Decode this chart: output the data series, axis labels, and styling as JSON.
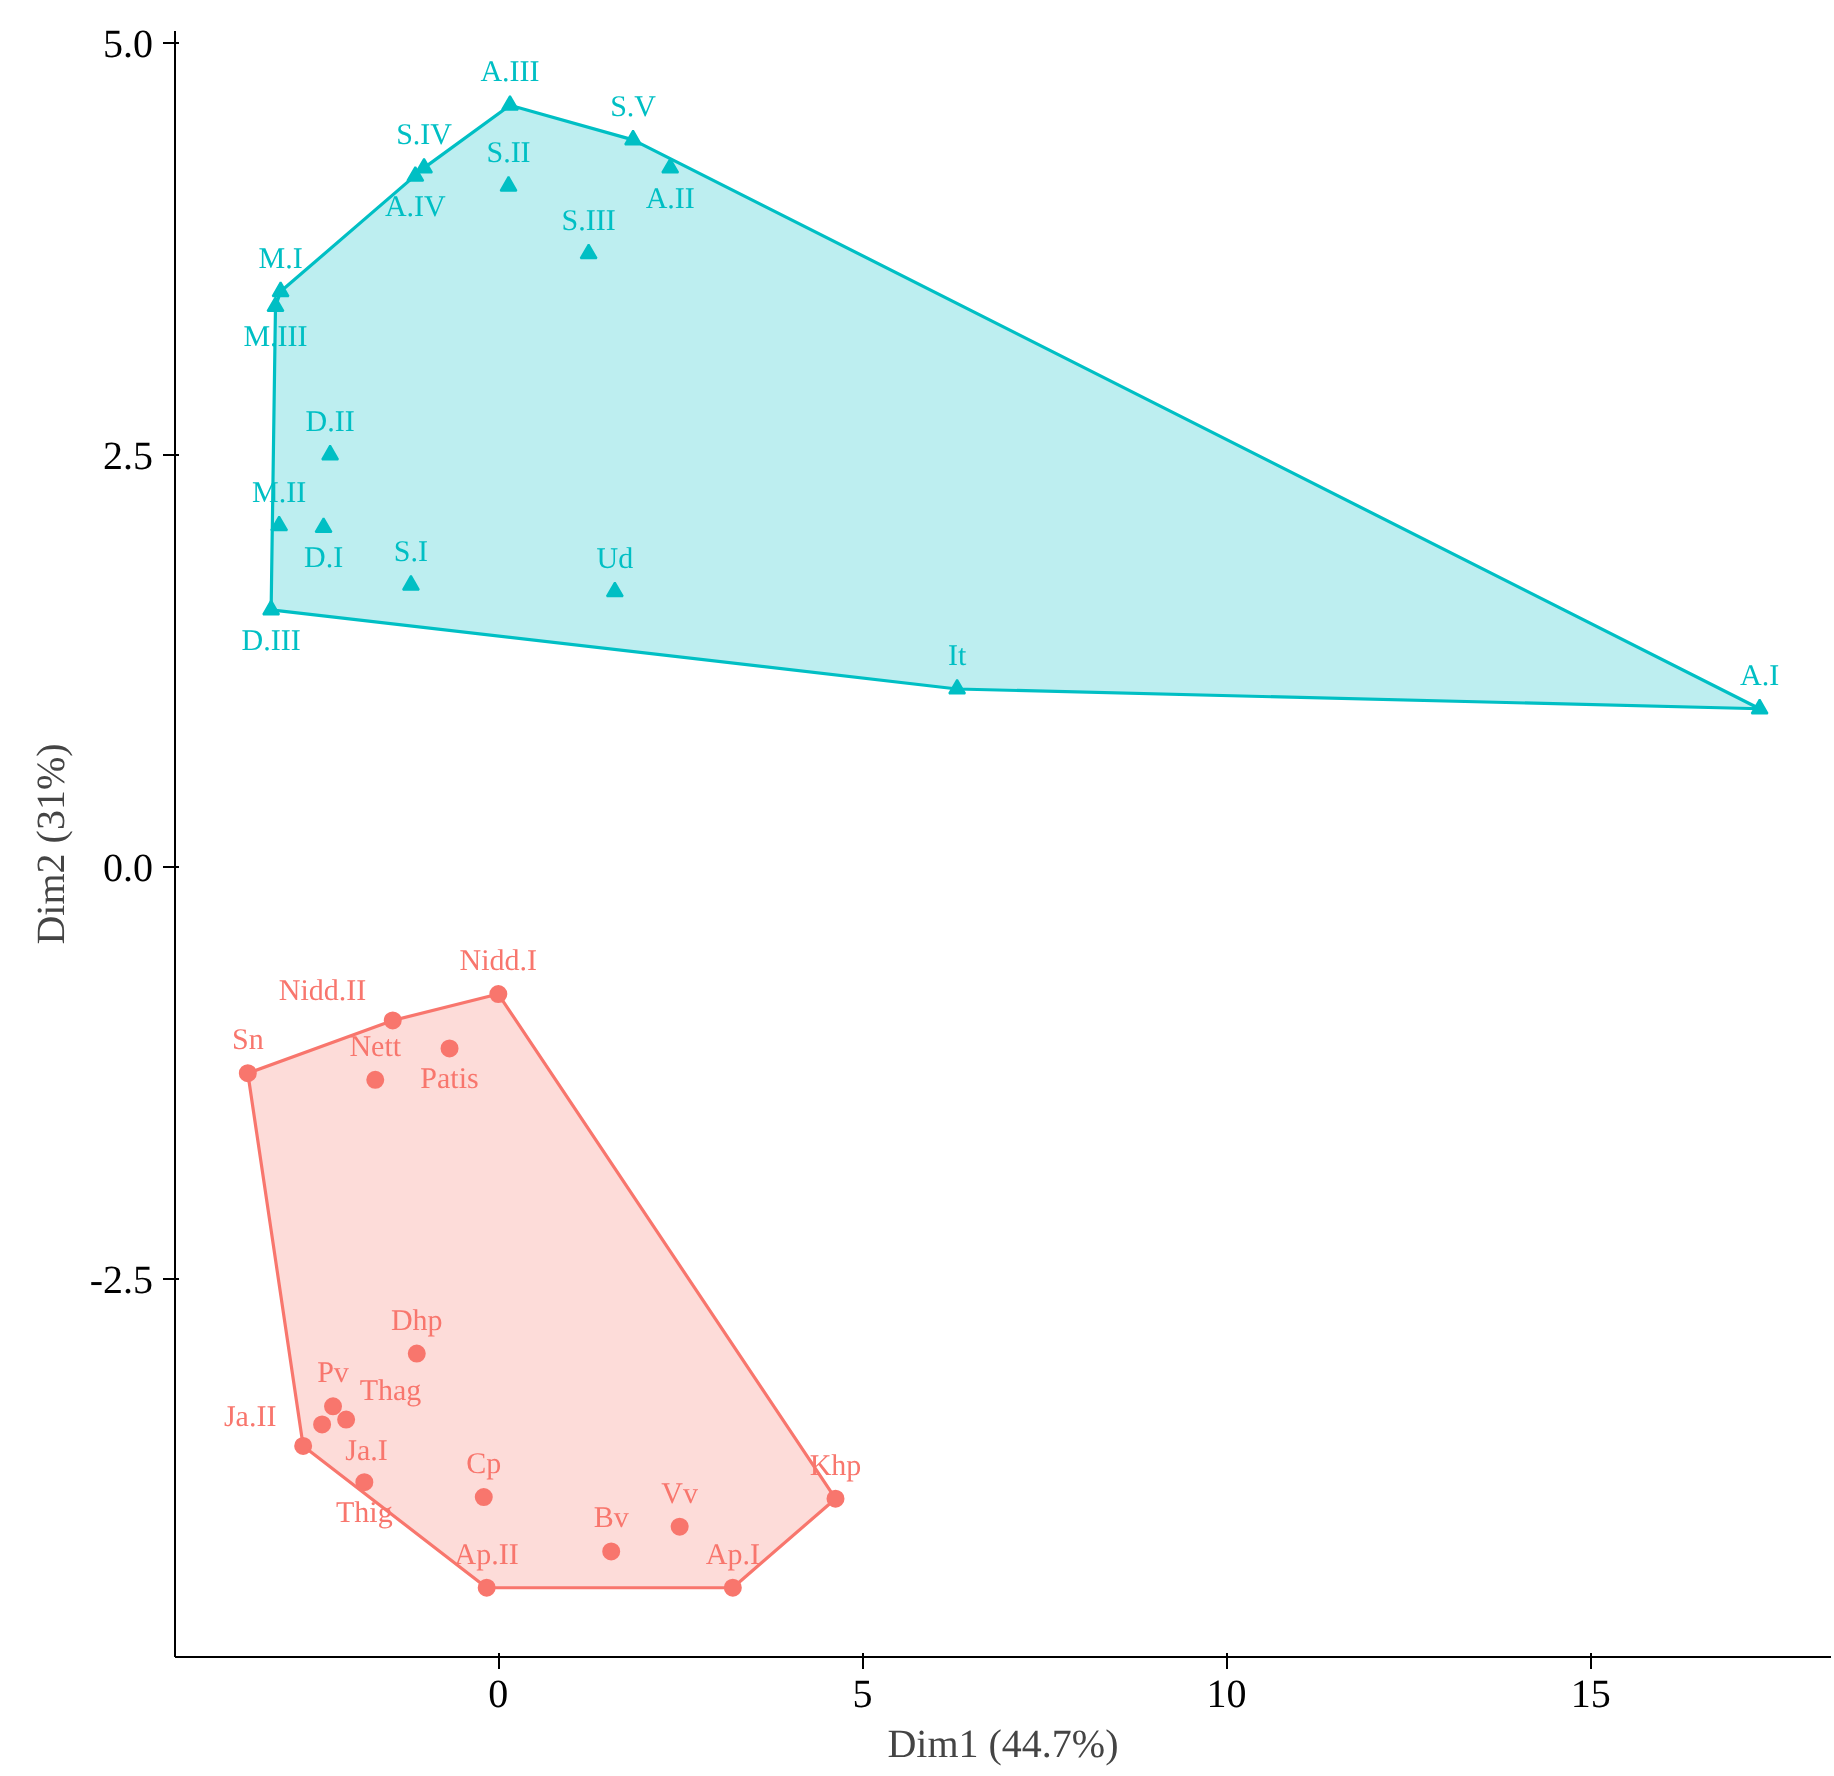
{
  "chart_data": {
    "type": "scatter",
    "xlabel": "Dim1 (44.7%)",
    "ylabel": "Dim2 (31%)",
    "xlim": [
      -4.44,
      18.3
    ],
    "ylim": [
      -4.79,
      5.07
    ],
    "xticks": [
      0,
      5,
      10,
      15
    ],
    "yticks": [
      {
        "value": -2.5,
        "label": "-2.5"
      },
      {
        "value": 0,
        "label": "0.0"
      },
      {
        "value": 2.5,
        "label": "2.5"
      },
      {
        "value": 5,
        "label": "5.0"
      }
    ],
    "grid": false,
    "series": [
      {
        "type": "area",
        "color": "#00bfc4",
        "x": [
          -3.12,
          6.3,
          17.32,
          1.85,
          0.16,
          -1.02,
          -2.99,
          -3.06
        ],
        "values": [
          1.56,
          1.08,
          0.96,
          4.41,
          4.62,
          4.24,
          3.49,
          3.4
        ]
      },
      {
        "type": "area",
        "color": "#f8766d",
        "x": [
          -3.44,
          -2.68,
          -0.16,
          3.22,
          4.63,
          0.0,
          -1.45
        ],
        "values": [
          -1.25,
          -3.51,
          -4.37,
          -4.37,
          -3.83,
          -0.77,
          -0.93
        ]
      },
      {
        "color": "#00bfc4",
        "marker": "triangle",
        "x": [
          0.16,
          1.85,
          2.36,
          -1.02,
          -1.14,
          0.14,
          1.24,
          -2.99,
          -3.06,
          -2.31,
          -3.01,
          -2.4,
          -1.2,
          1.6,
          -3.12,
          6.3,
          17.32
        ],
        "values": [
          4.62,
          4.41,
          4.24,
          4.24,
          4.19,
          4.13,
          3.72,
          3.49,
          3.4,
          2.5,
          2.07,
          2.06,
          1.71,
          1.67,
          1.56,
          1.08,
          0.96
        ],
        "value_labels": [
          "A.III",
          "S.V",
          "A.II",
          "S.IV",
          "A.IV",
          "S.II",
          "S.III",
          "M.I",
          "M.III",
          "D.II",
          "M.II",
          "D.I",
          "S.I",
          "Ud",
          "D.III",
          "It",
          "A.I"
        ]
      },
      {
        "color": "#f8766d",
        "marker": "circle",
        "x": [
          0.0,
          -1.45,
          -0.67,
          -3.44,
          -1.69,
          -1.12,
          -2.27,
          -2.09,
          -2.42,
          -2.68,
          -1.84,
          -0.2,
          2.49,
          1.55,
          -0.16,
          3.22,
          4.63
        ],
        "values": [
          -0.77,
          -0.93,
          -1.1,
          -1.25,
          -1.29,
          -2.95,
          -3.27,
          -3.35,
          -3.38,
          -3.51,
          -3.73,
          -3.82,
          -4.0,
          -4.15,
          -4.37,
          -4.37,
          -3.83
        ],
        "value_labels": [
          "Nidd.I",
          "Nidd.II",
          "Patis",
          "Sn",
          "Nett",
          "Dhp",
          "Pv",
          "Thag",
          "Ja.I",
          "Ja.II",
          "Thig",
          "Cp",
          "Vv",
          "Bv",
          "Ap.II",
          "Ap.I",
          "Khp"
        ]
      }
    ]
  }
}
